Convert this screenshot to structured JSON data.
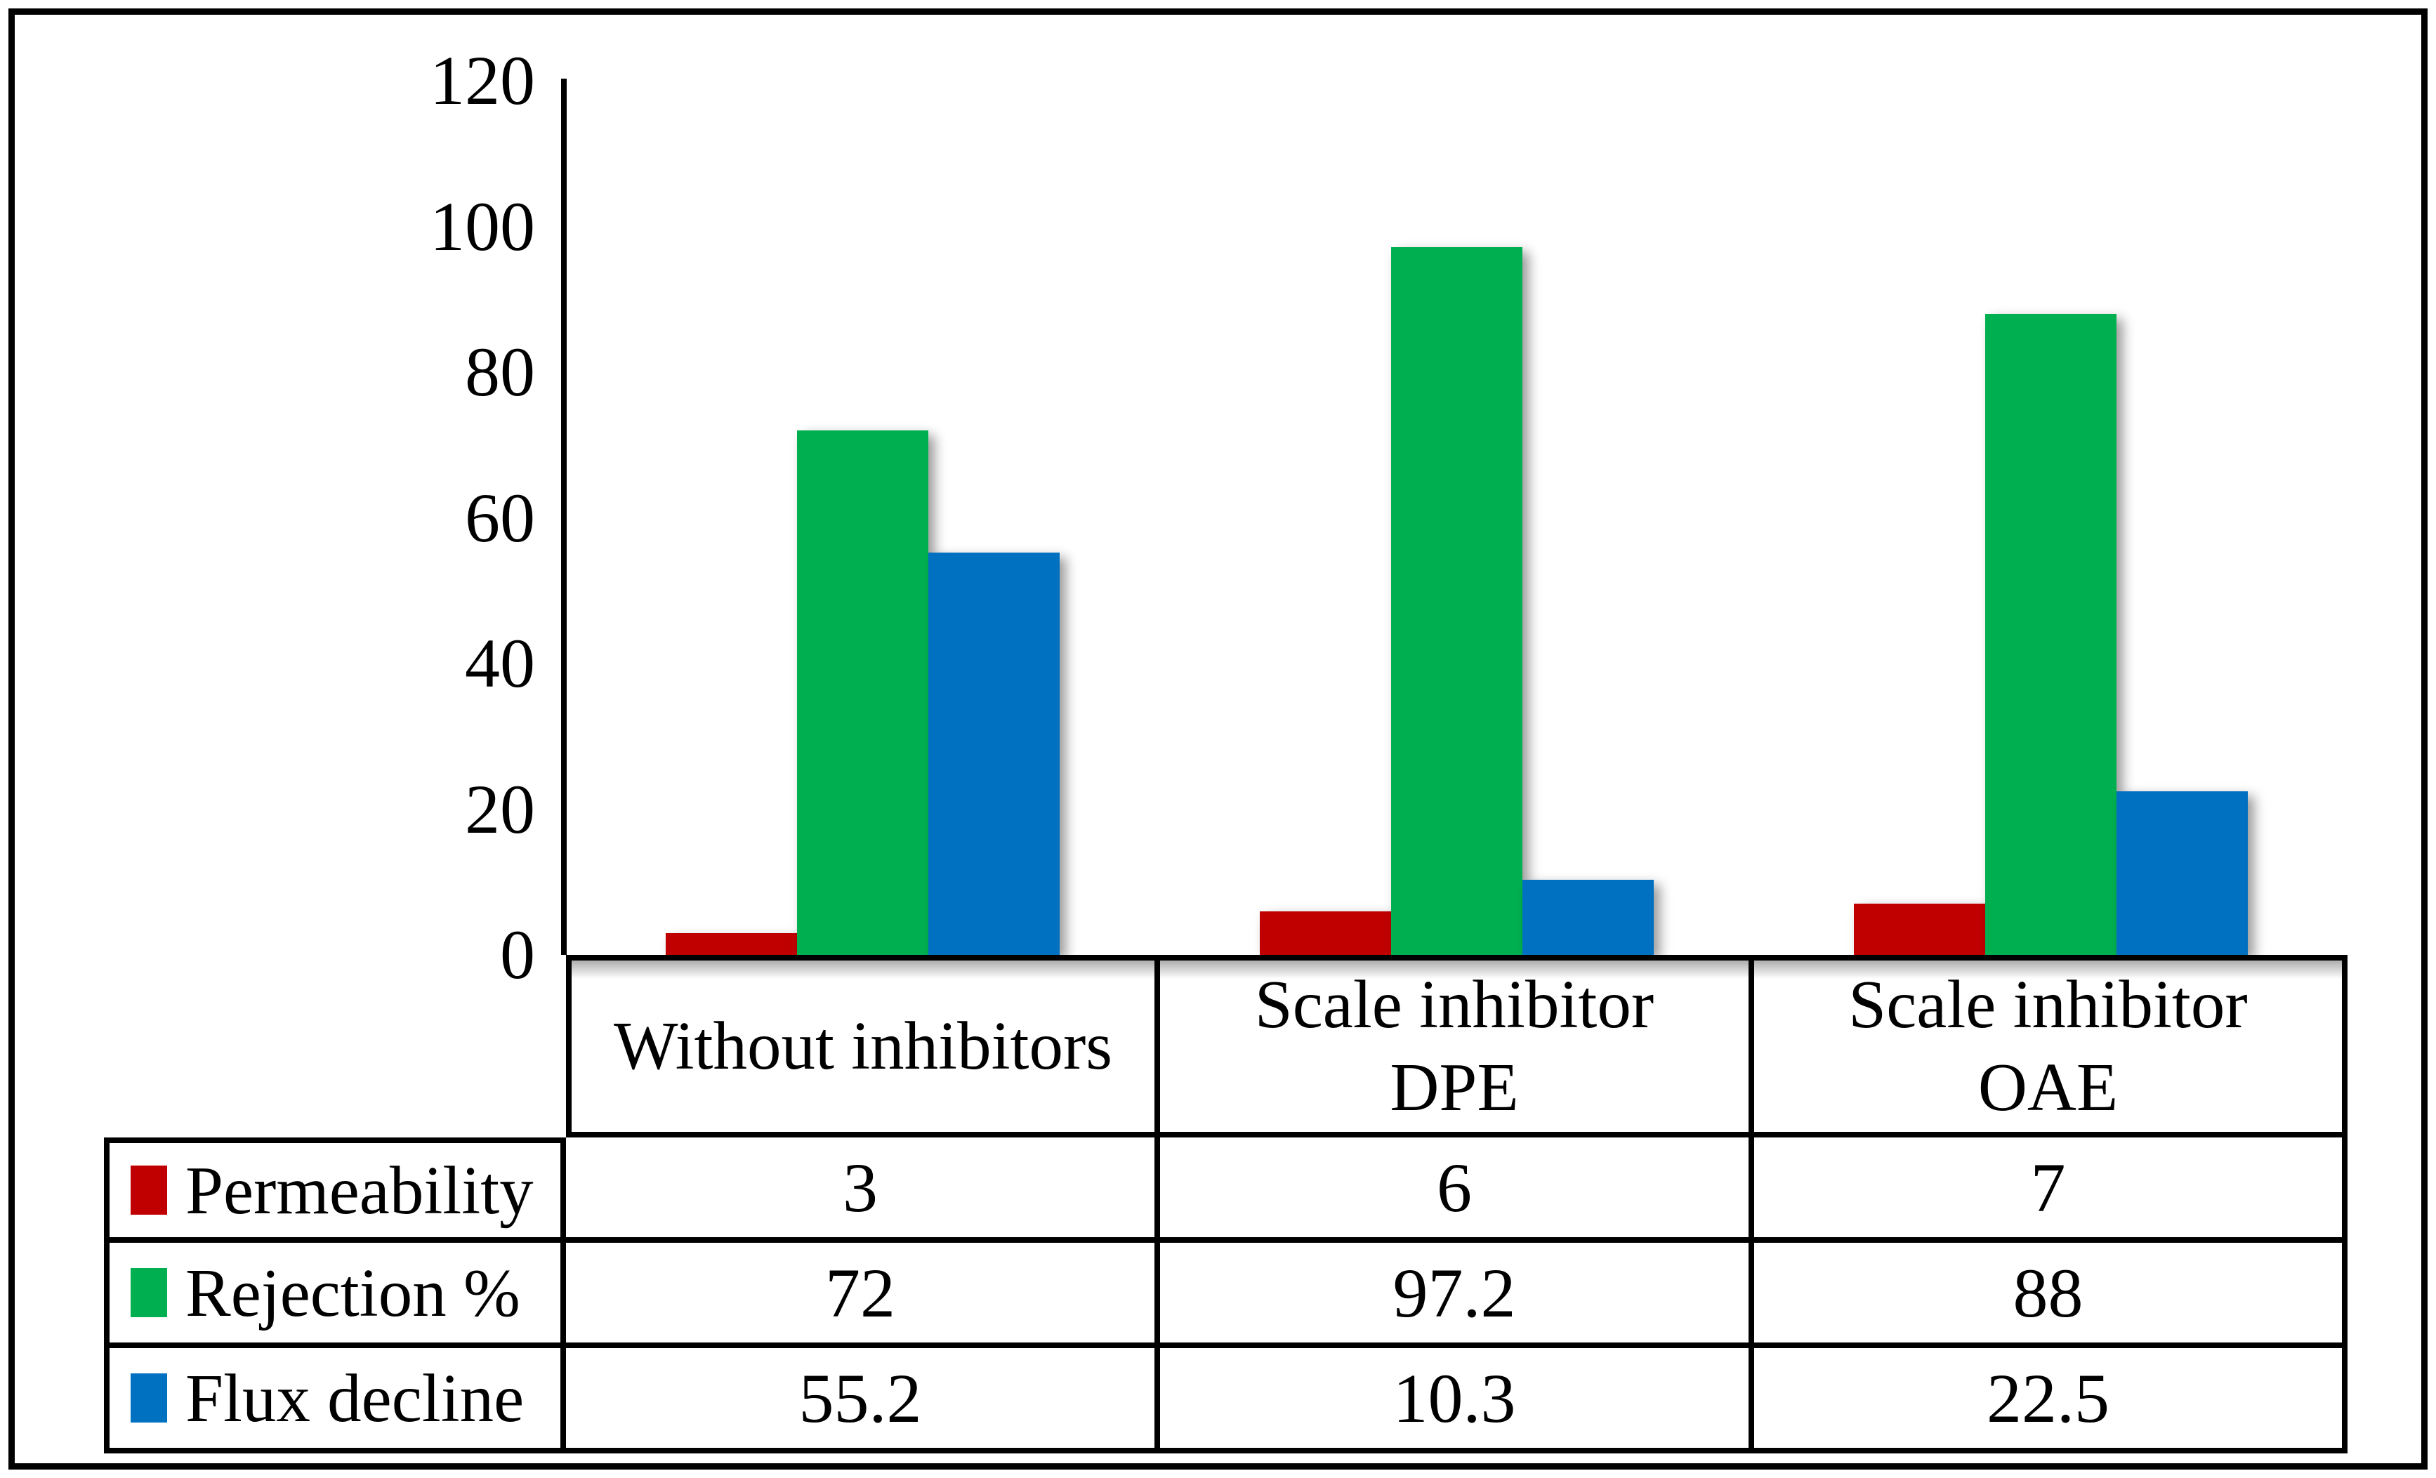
{
  "chart_data": {
    "type": "bar",
    "title": "",
    "categories": [
      "Without inhibitors",
      "Scale inhibitor\nDPE",
      "Scale inhibitor\nOAE"
    ],
    "series": [
      {
        "name": "Permeability",
        "color": "#C00000",
        "values": [
          3,
          6,
          7
        ]
      },
      {
        "name": "Rejection %",
        "color": "#00B050",
        "values": [
          72,
          97.2,
          88
        ]
      },
      {
        "name": "Flux decline",
        "color": "#0070C0",
        "values": [
          55.2,
          10.3,
          22.5
        ]
      }
    ],
    "yticks": [
      0,
      20,
      40,
      60,
      80,
      100,
      120
    ],
    "ylim": [
      0,
      120
    ],
    "xlabel": "",
    "ylabel": "",
    "grid": false,
    "legend_position": "data-table-left-column",
    "data_table": true,
    "bar_shadow": true,
    "table_values_text": [
      [
        "3",
        "6",
        "7"
      ],
      [
        "72",
        "97.2",
        "88"
      ],
      [
        "55.2",
        "10.3",
        "22.5"
      ]
    ]
  }
}
